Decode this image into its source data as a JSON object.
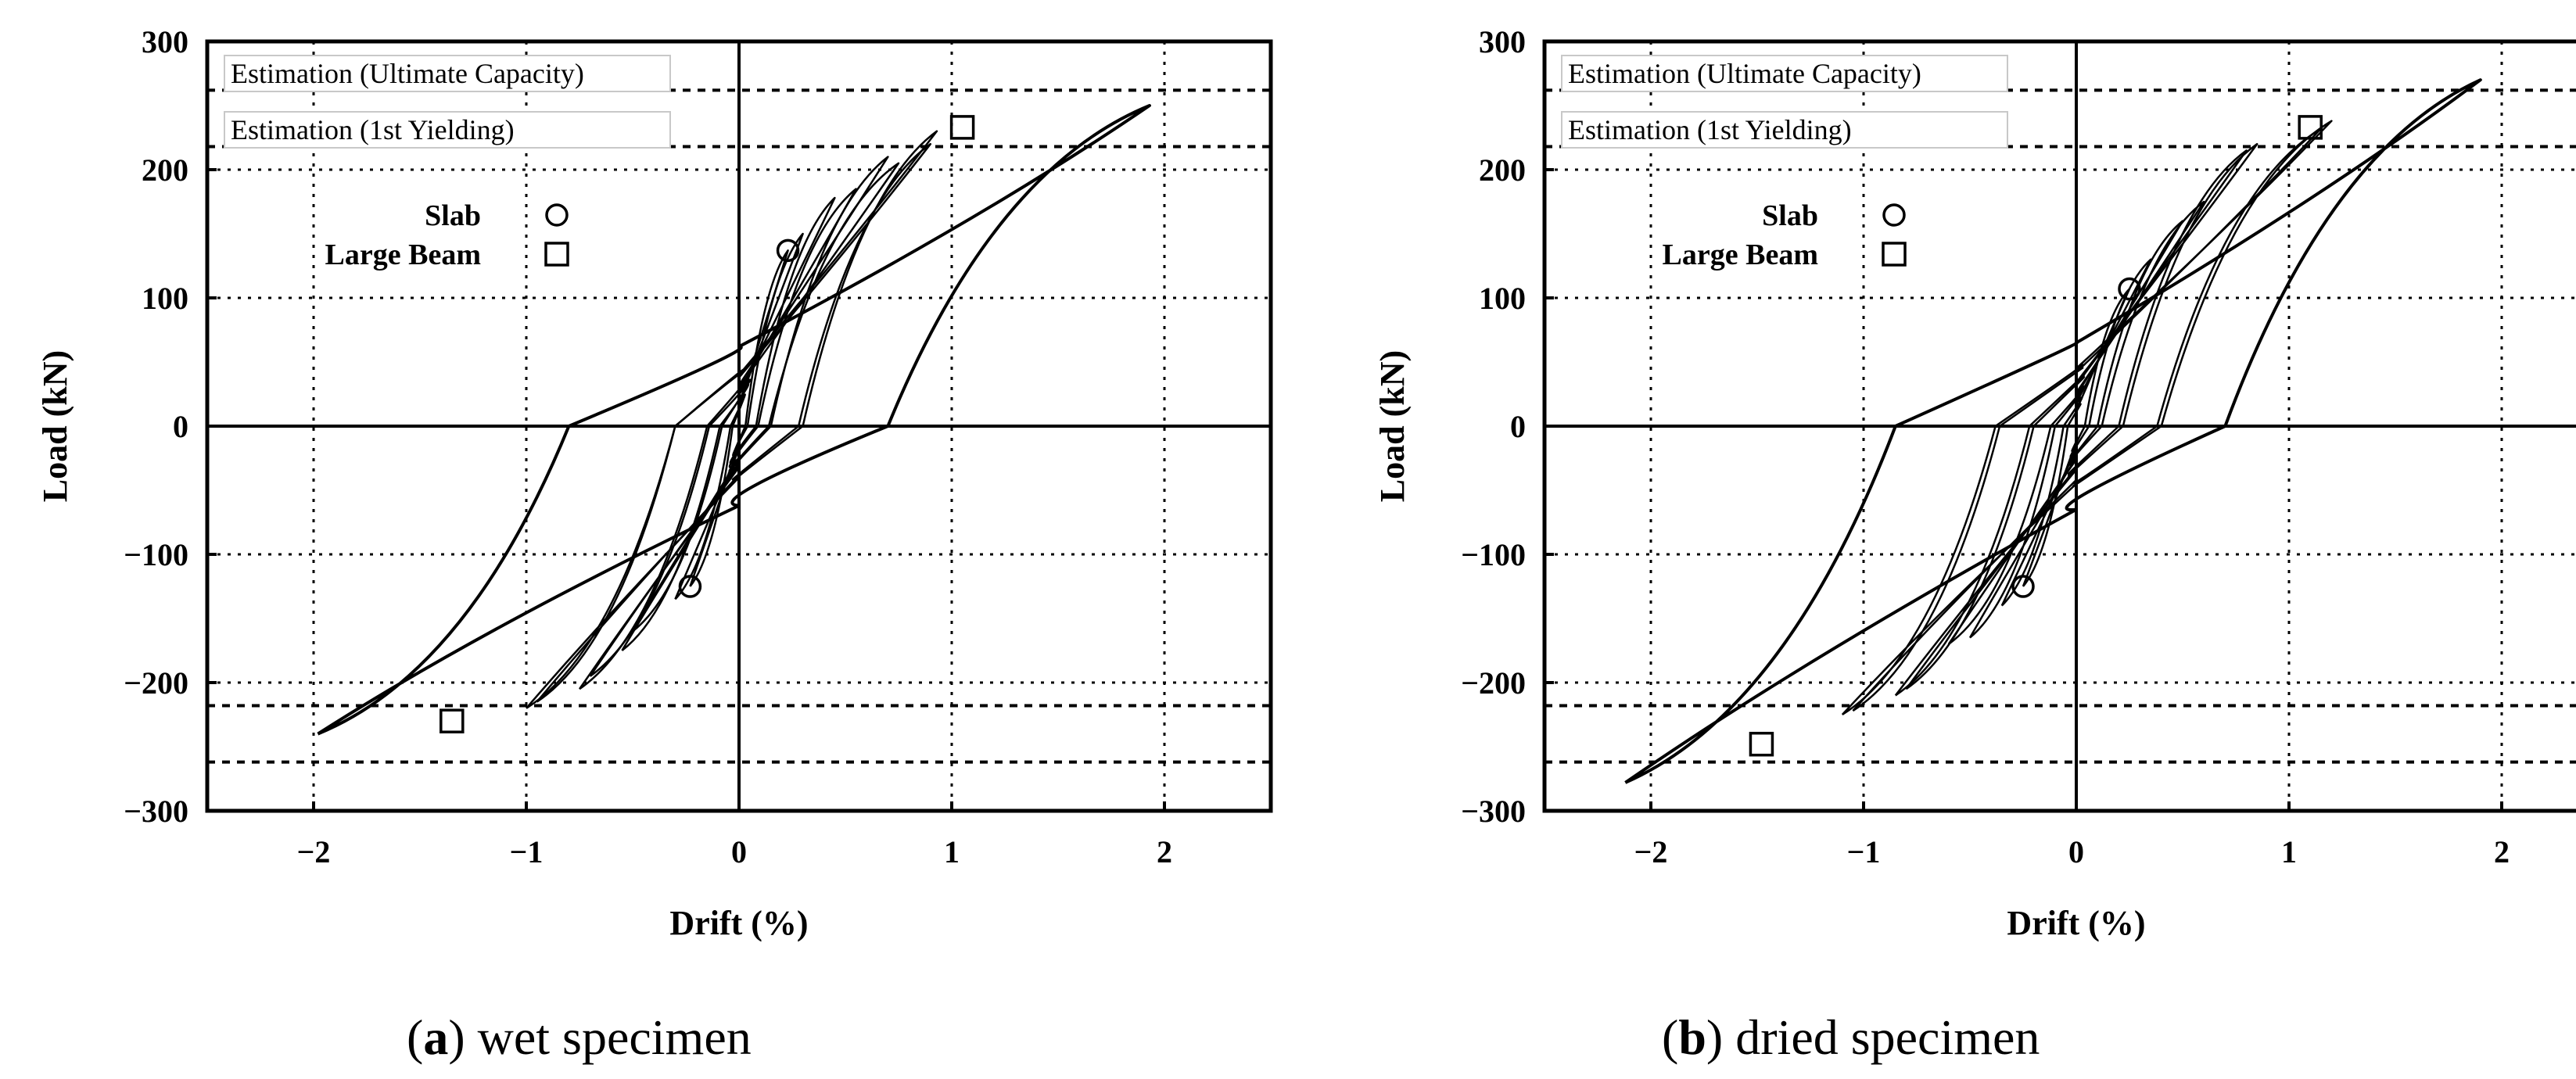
{
  "figure": {
    "caption_a": {
      "letter": "a",
      "text": " wet specimen"
    },
    "caption_b": {
      "letter": "b",
      "text": " dried specimen"
    }
  },
  "chart_data": [
    {
      "type": "line",
      "title": "",
      "caption": "(a) wet specimen",
      "xlabel": "Drift (%)",
      "ylabel": "Load (kN)",
      "xlim": [
        -2.5,
        2.5
      ],
      "ylim": [
        -300,
        300
      ],
      "xticks": [
        -2,
        -1,
        0,
        1,
        2
      ],
      "xtick_labels": [
        "−2",
        "−1",
        "0",
        "1",
        "2"
      ],
      "yticks": [
        300,
        200,
        100,
        0,
        -100,
        -200,
        -300
      ],
      "ytick_labels": [
        "300",
        "200",
        "100",
        "0",
        "−100",
        "−200",
        "−300"
      ],
      "grid": true,
      "reference_lines": [
        {
          "label": "Estimation (Ultimate Capacity)",
          "values": [
            262,
            -262
          ]
        },
        {
          "label": "Estimation (1st Yielding)",
          "values": [
            218,
            -218
          ]
        }
      ],
      "legend": {
        "position": "top-left",
        "entries": [
          {
            "label": "Slab",
            "marker": "circle"
          },
          {
            "label": "Large Beam",
            "marker": "square"
          }
        ]
      },
      "markers": [
        {
          "series": "Slab",
          "marker": "circle",
          "points": [
            [
              0.23,
              137
            ],
            [
              -0.23,
              -125
            ]
          ]
        },
        {
          "series": "Large Beam",
          "marker": "square",
          "points": [
            [
              1.05,
              233
            ],
            [
              -1.35,
              -230
            ]
          ]
        }
      ],
      "series": [
        {
          "name": "Load-drift hysteresis",
          "cycles": [
            {
              "peak_pos": [
                0.23,
                137
              ],
              "peak_neg": [
                -0.23,
                -125
              ],
              "residual_pos": 0.03,
              "residual_neg": -0.03,
              "intercept": 15
            },
            {
              "peak_pos": [
                0.3,
                150
              ],
              "peak_neg": [
                -0.3,
                -135
              ],
              "residual_pos": 0.04,
              "residual_neg": -0.04,
              "intercept": 18
            },
            {
              "peak_pos": [
                0.45,
                178
              ],
              "peak_neg": [
                -0.5,
                -160
              ],
              "residual_pos": 0.08,
              "residual_neg": -0.08,
              "intercept": 25
            },
            {
              "peak_pos": [
                0.55,
                185
              ],
              "peak_neg": [
                -0.55,
                -175
              ],
              "residual_pos": 0.09,
              "residual_neg": -0.09,
              "intercept": 28
            },
            {
              "peak_pos": [
                0.7,
                210
              ],
              "peak_neg": [
                -0.75,
                -205
              ],
              "residual_pos": 0.15,
              "residual_neg": -0.15,
              "intercept": 32
            },
            {
              "peak_pos": [
                0.75,
                205
              ],
              "peak_neg": [
                -0.7,
                -195
              ],
              "residual_pos": 0.14,
              "residual_neg": -0.14,
              "intercept": 30
            },
            {
              "peak_pos": [
                0.93,
                230
              ],
              "peak_neg": [
                -1.0,
                -220
              ],
              "residual_pos": 0.3,
              "residual_neg": -0.3,
              "intercept": 40
            },
            {
              "peak_pos": [
                0.9,
                220
              ],
              "peak_neg": [
                -0.95,
                -215
              ],
              "residual_pos": 0.28,
              "residual_neg": -0.3,
              "intercept": 38
            },
            {
              "peak_pos": [
                1.93,
                250
              ],
              "peak_neg": [
                -1.98,
                -240
              ],
              "residual_pos": 0.7,
              "residual_neg": -0.8,
              "intercept": 62
            }
          ]
        }
      ]
    },
    {
      "type": "line",
      "title": "",
      "caption": "(b) dried specimen",
      "xlabel": "Drift (%)",
      "ylabel": "Load (kN)",
      "xlim": [
        -2.5,
        2.5
      ],
      "ylim": [
        -300,
        300
      ],
      "xticks": [
        -2,
        -1,
        0,
        1,
        2
      ],
      "xtick_labels": [
        "−2",
        "−1",
        "0",
        "1",
        "2"
      ],
      "yticks": [
        300,
        200,
        100,
        0,
        -100,
        -200,
        -300
      ],
      "ytick_labels": [
        "300",
        "200",
        "100",
        "0",
        "−100",
        "−200",
        "−300"
      ],
      "grid": true,
      "reference_lines": [
        {
          "label": "Estimation (Ultimate Capacity)",
          "values": [
            262,
            -262
          ]
        },
        {
          "label": "Estimation (1st Yielding)",
          "values": [
            218,
            -218
          ]
        }
      ],
      "legend": {
        "position": "top-left",
        "entries": [
          {
            "label": "Slab",
            "marker": "circle"
          },
          {
            "label": "Large Beam",
            "marker": "square"
          }
        ]
      },
      "markers": [
        {
          "series": "Slab",
          "marker": "circle",
          "points": [
            [
              0.25,
              107
            ],
            [
              -0.25,
              -125
            ]
          ]
        },
        {
          "series": "Large Beam",
          "marker": "square",
          "points": [
            [
              1.1,
              233
            ],
            [
              -1.48,
              -248
            ]
          ]
        }
      ],
      "series": [
        {
          "name": "Load-drift hysteresis",
          "cycles": [
            {
              "peak_pos": [
                0.25,
                107
              ],
              "peak_neg": [
                -0.25,
                -125
              ],
              "residual_pos": 0.04,
              "residual_neg": -0.04,
              "intercept": 12
            },
            {
              "peak_pos": [
                0.35,
                130
              ],
              "peak_neg": [
                -0.35,
                -140
              ],
              "residual_pos": 0.06,
              "residual_neg": -0.06,
              "intercept": 18
            },
            {
              "peak_pos": [
                0.5,
                160
              ],
              "peak_neg": [
                -0.5,
                -165
              ],
              "residual_pos": 0.1,
              "residual_neg": -0.1,
              "intercept": 24
            },
            {
              "peak_pos": [
                0.6,
                175
              ],
              "peak_neg": [
                -0.6,
                -170
              ],
              "residual_pos": 0.12,
              "residual_neg": -0.12,
              "intercept": 26
            },
            {
              "peak_pos": [
                0.85,
                220
              ],
              "peak_neg": [
                -0.85,
                -210
              ],
              "residual_pos": 0.22,
              "residual_neg": -0.22,
              "intercept": 34
            },
            {
              "peak_pos": [
                0.8,
                215
              ],
              "peak_neg": [
                -0.8,
                -205
              ],
              "residual_pos": 0.2,
              "residual_neg": -0.2,
              "intercept": 32
            },
            {
              "peak_pos": [
                1.2,
                238
              ],
              "peak_neg": [
                -1.1,
                -225
              ],
              "residual_pos": 0.4,
              "residual_neg": -0.38,
              "intercept": 45
            },
            {
              "peak_pos": [
                1.15,
                232
              ],
              "peak_neg": [
                -1.05,
                -222
              ],
              "residual_pos": 0.38,
              "residual_neg": -0.36,
              "intercept": 42
            },
            {
              "peak_pos": [
                1.9,
                270
              ],
              "peak_neg": [
                -2.12,
                -278
              ],
              "residual_pos": 0.7,
              "residual_neg": -0.85,
              "intercept": 65
            }
          ]
        }
      ]
    }
  ]
}
